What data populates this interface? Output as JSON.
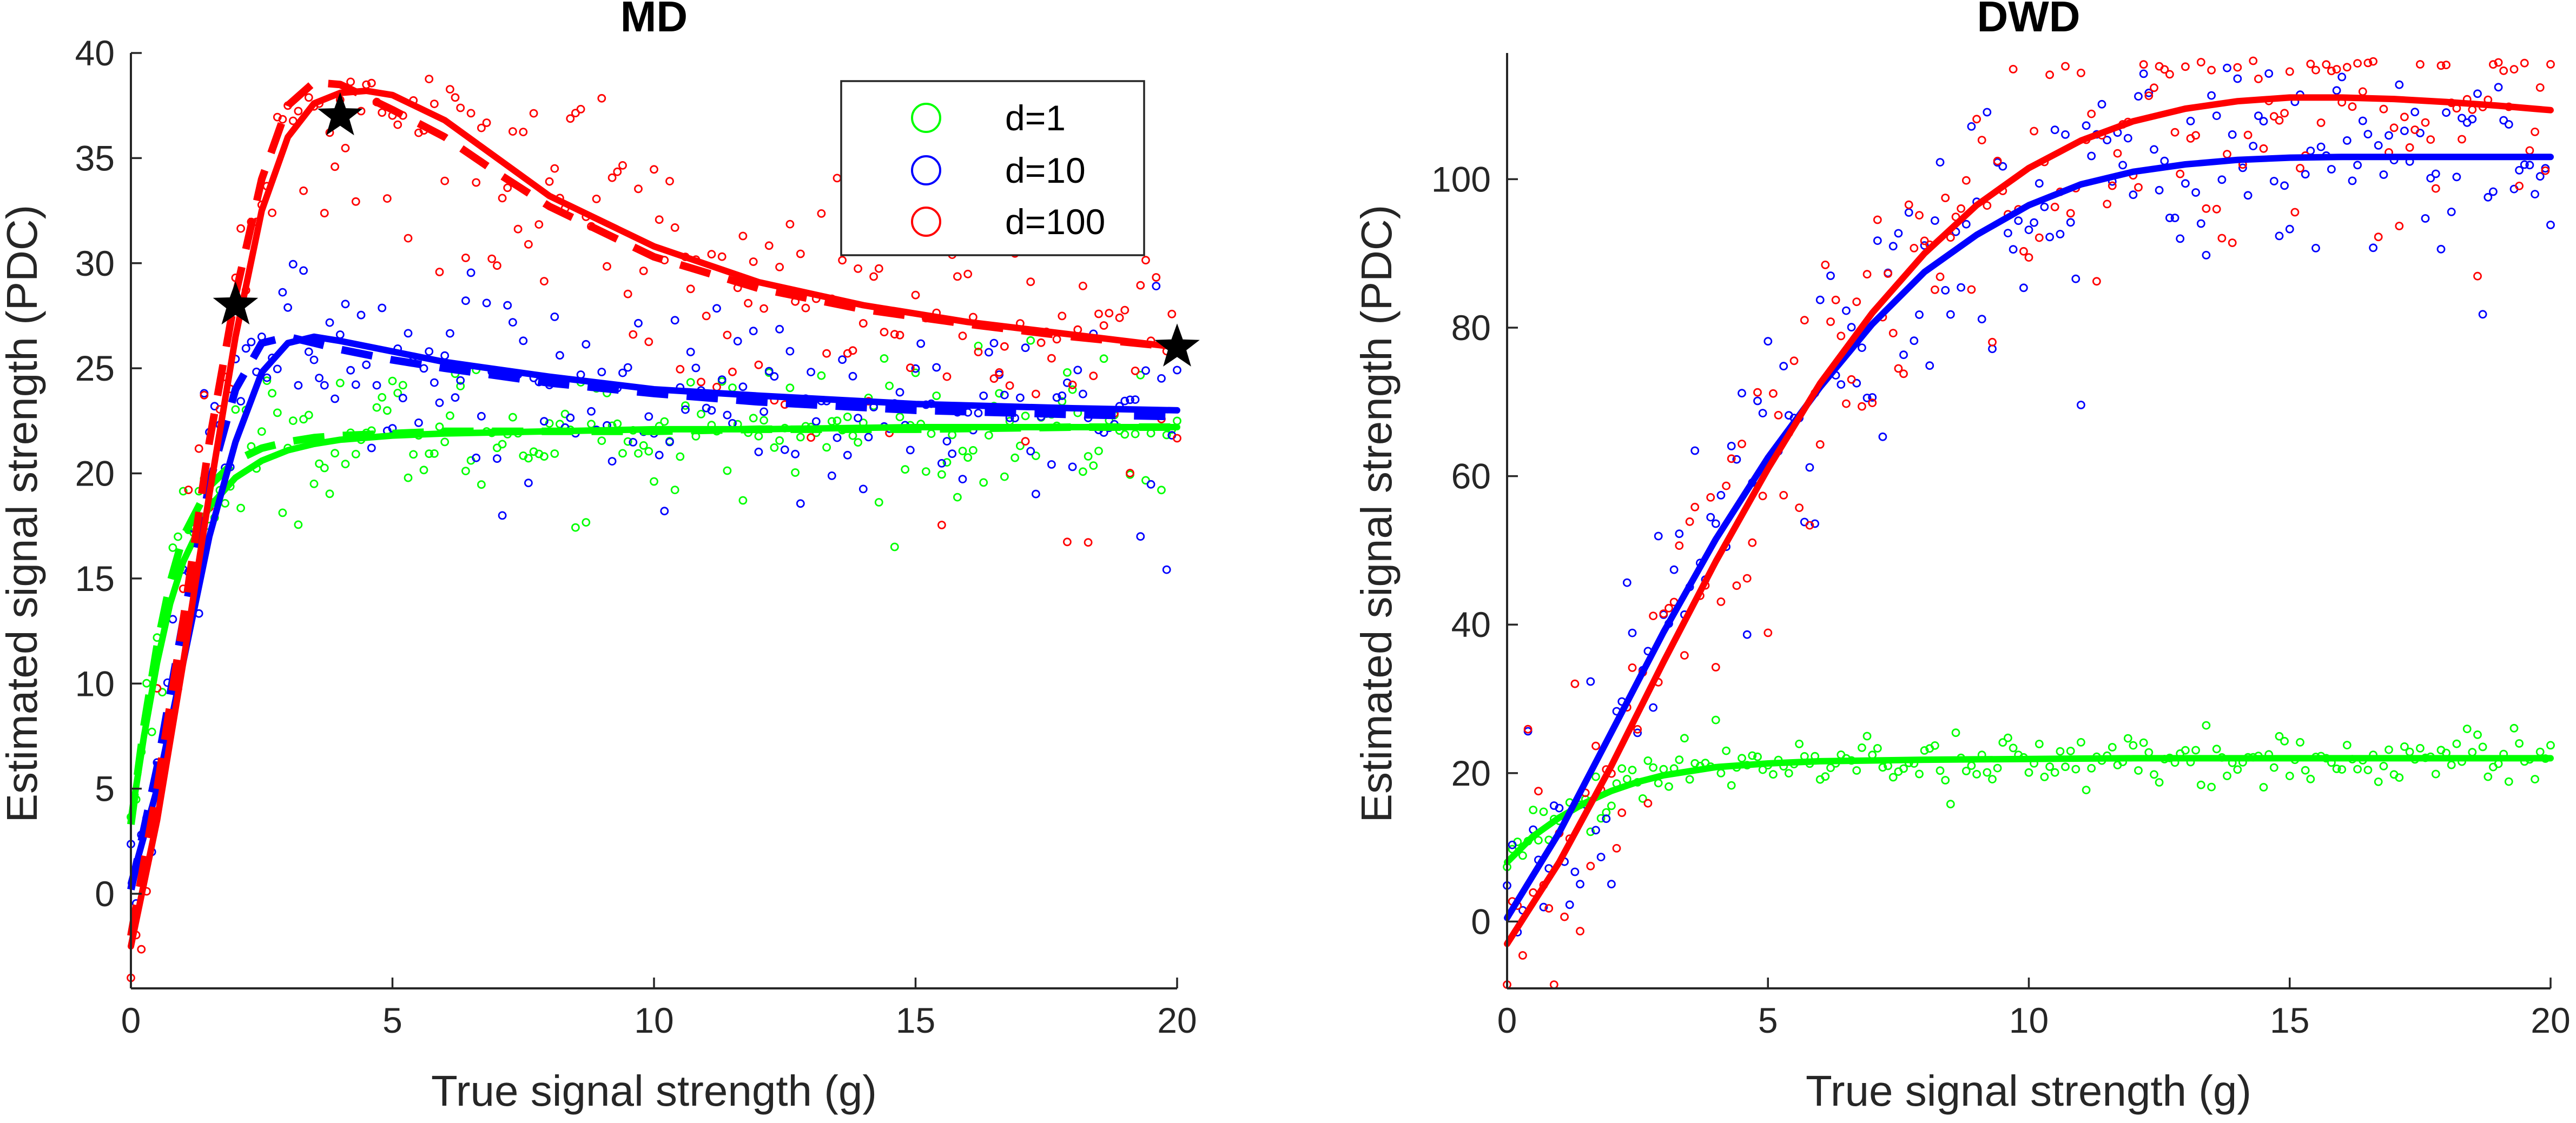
{
  "chart_data": [
    {
      "id": "md",
      "type": "scatter",
      "title": "MD",
      "xlabel": "True signal strength (g)",
      "ylabel": "Estimated signal strength (PDC)",
      "xlim": [
        0,
        20
      ],
      "ylim": [
        -4.5,
        40
      ],
      "xticks": [
        0,
        5,
        10,
        15,
        20
      ],
      "yticks": [
        0,
        5,
        10,
        15,
        20,
        25,
        30,
        35,
        40
      ],
      "xtick_labels": [
        "0",
        "5",
        "10",
        "15",
        "20"
      ],
      "ytick_labels": [
        "0",
        "5",
        "10",
        "15",
        "20",
        "25",
        "30",
        "35",
        "40"
      ],
      "legend": {
        "location": "top-right",
        "entries": [
          {
            "label": "d=1",
            "color": "#00ff00"
          },
          {
            "label": "d=10",
            "color": "#0000ff"
          },
          {
            "label": "d=100",
            "color": "#ff0000"
          }
        ]
      },
      "series": [
        {
          "name": "d=1",
          "color": "#00ff00",
          "scatter_model": {
            "peak": 21.7,
            "plateau": 21.9,
            "k": 1.1,
            "start": 3.3,
            "noise": 1.6
          },
          "fit_solid": {
            "x": [
              0,
              0.25,
              0.5,
              0.75,
              1,
              1.5,
              2,
              2.5,
              3,
              3.5,
              4,
              5,
              6,
              8,
              10,
              12,
              15,
              18,
              20
            ],
            "y": [
              3.5,
              7.5,
              11.0,
              13.8,
              15.8,
              18.4,
              19.8,
              20.6,
              21.1,
              21.4,
              21.6,
              21.8,
              21.9,
              22.0,
              22.1,
              22.1,
              22.2,
              22.2,
              22.2
            ]
          },
          "fit_dashed": {
            "x": [
              0,
              0.25,
              0.5,
              0.75,
              1,
              1.5,
              2,
              2.5,
              3,
              3.5,
              4,
              5,
              6,
              8,
              10,
              12,
              15,
              18,
              20
            ],
            "y": [
              3.3,
              8.0,
              11.8,
              14.8,
              17.0,
              19.4,
              20.6,
              21.2,
              21.5,
              21.7,
              21.8,
              21.9,
              22.0,
              22.0,
              22.0,
              22.1,
              22.1,
              22.2,
              22.2
            ]
          }
        },
        {
          "name": "d=10",
          "color": "#0000ff",
          "scatter_model": {
            "peak": 26.5,
            "plateau": 23.0,
            "k": 0.6,
            "start": 0.5,
            "noise": 2.2
          },
          "fit_solid": {
            "x": [
              0,
              0.5,
              1,
              1.5,
              2,
              2.5,
              3,
              3.5,
              4,
              5,
              6,
              8,
              10,
              12,
              15,
              18,
              20
            ],
            "y": [
              0.5,
              5.0,
              11.0,
              17.0,
              21.5,
              24.8,
              26.2,
              26.5,
              26.3,
              25.8,
              25.3,
              24.6,
              24.0,
              23.7,
              23.3,
              23.1,
              23.0
            ]
          },
          "fit_dashed": {
            "x": [
              0,
              0.5,
              1,
              1.5,
              2,
              2.5,
              3,
              3.5,
              4,
              5,
              6,
              8,
              10,
              12,
              15,
              18,
              20
            ],
            "y": [
              0.2,
              6.0,
              13.0,
              19.5,
              24.0,
              26.2,
              26.5,
              26.2,
              25.9,
              25.4,
              25.0,
              24.3,
              23.8,
              23.4,
              23.0,
              22.8,
              22.7
            ]
          }
        },
        {
          "name": "d=100",
          "color": "#ff0000",
          "scatter_model": {
            "peak": 38.0,
            "plateau": 26.5,
            "k": 0.35,
            "start": -2.5,
            "noise": 3.4
          },
          "fit_solid": {
            "x": [
              0,
              0.5,
              1,
              1.5,
              2,
              2.5,
              3,
              3.5,
              4,
              4.5,
              5,
              6,
              7,
              8,
              10,
              12,
              14,
              16,
              18,
              20
            ],
            "y": [
              -2.5,
              3.5,
              11.0,
              19.0,
              26.5,
              32.5,
              36.0,
              37.6,
              38.1,
              38.2,
              38.0,
              36.8,
              35.0,
              33.2,
              30.8,
              29.1,
              28.0,
              27.2,
              26.6,
              26.0
            ]
          },
          "fit_dashed": {
            "x": [
              0,
              0.5,
              1,
              1.5,
              2,
              2.5,
              3,
              3.5,
              4,
              4.5,
              5,
              6,
              7,
              8,
              10,
              12,
              14,
              16,
              18,
              20
            ],
            "y": [
              -2.0,
              5.0,
              13.0,
              21.5,
              28.5,
              34.0,
              37.5,
              38.6,
              38.5,
              37.9,
              37.3,
              36.0,
              34.3,
              32.7,
              30.3,
              28.8,
              27.8,
              27.1,
              26.5,
              26.0
            ]
          }
        }
      ],
      "star_markers": {
        "color": "#000000",
        "points": [
          {
            "x": 2,
            "y": 28
          },
          {
            "x": 4,
            "y": 37
          },
          {
            "x": 20,
            "y": 26
          }
        ]
      }
    },
    {
      "id": "dwd",
      "type": "scatter",
      "title": "DWD",
      "xlabel": "True signal strength (g)",
      "ylabel": "Estimated signal strength (PDC)",
      "xlim": [
        0,
        20
      ],
      "ylim": [
        -9,
        117
      ],
      "xticks": [
        0,
        5,
        10,
        15,
        20
      ],
      "yticks": [
        0,
        20,
        40,
        60,
        80,
        100
      ],
      "xtick_labels": [
        "0",
        "5",
        "10",
        "15",
        "20"
      ],
      "ytick_labels": [
        "0",
        "20",
        "40",
        "60",
        "80",
        "100"
      ],
      "series": [
        {
          "name": "d=1",
          "color": "#00ff00",
          "scatter_model": {
            "plateau": 22.0,
            "k": 1.0,
            "start": 8.0,
            "noise": 1.8
          },
          "fit_solid": {
            "x": [
              0,
              0.5,
              1,
              1.5,
              2,
              2.5,
              3,
              4,
              5,
              6,
              8,
              10,
              12,
              15,
              18,
              20
            ],
            "y": [
              8.0,
              11.5,
              14.0,
              16.0,
              17.6,
              18.8,
              19.7,
              20.8,
              21.3,
              21.6,
              21.8,
              21.9,
              22.0,
              22.0,
              22.0,
              22.0
            ]
          }
        },
        {
          "name": "d=10",
          "color": "#0000ff",
          "scatter_model": {
            "plateau": 103.0,
            "k": 0.22,
            "start": 0.5,
            "noise": 8.0
          },
          "fit_solid": {
            "x": [
              0,
              1,
              2,
              3,
              4,
              5,
              6,
              7,
              8,
              9,
              10,
              11,
              12,
              13,
              14,
              15,
              16,
              18,
              20
            ],
            "y": [
              0.5,
              12.0,
              25.5,
              39.0,
              51.5,
              62.5,
              72.0,
              80.5,
              87.5,
              92.5,
              96.5,
              99.3,
              101.0,
              102.0,
              102.6,
              102.9,
              103.0,
              103.0,
              103.0
            ]
          }
        },
        {
          "name": "d=100",
          "color": "#ff0000",
          "scatter_model": {
            "plateau": 110.0,
            "k": 0.2,
            "start": -3.0,
            "noise": 9.0
          },
          "fit_solid": {
            "x": [
              0,
              1,
              2,
              3,
              4,
              5,
              6,
              7,
              8,
              9,
              10,
              11,
              12,
              13,
              14,
              15,
              16,
              17,
              18,
              19,
              20
            ],
            "y": [
              -3.0,
              8.0,
              21.0,
              35.0,
              48.5,
              61.0,
              72.5,
              82.0,
              90.0,
              96.5,
              101.5,
              105.2,
              107.8,
              109.5,
              110.5,
              111.0,
              111.0,
              110.8,
              110.4,
              109.9,
              109.3
            ]
          }
        }
      ]
    }
  ]
}
